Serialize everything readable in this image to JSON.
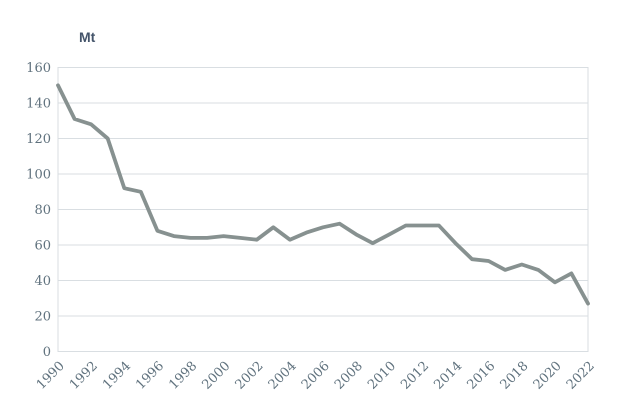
{
  "unit_label": "Mt",
  "chart_data": {
    "type": "line",
    "title": "",
    "xlabel": "",
    "ylabel": "Mt",
    "unit_label": "Mt",
    "legend": "none",
    "grid": "horizontal",
    "ylim": [
      0,
      160
    ],
    "ytick_step": 20,
    "yticks": [
      0,
      20,
      40,
      60,
      80,
      100,
      120,
      140,
      160
    ],
    "xticks": [
      1990,
      1992,
      1994,
      1996,
      1998,
      2000,
      2002,
      2004,
      2006,
      2008,
      2010,
      2012,
      2014,
      2016,
      2018,
      2020,
      2022
    ],
    "x": [
      1990,
      1991,
      1992,
      1993,
      1994,
      1995,
      1996,
      1997,
      1998,
      1999,
      2000,
      2001,
      2002,
      2003,
      2004,
      2005,
      2006,
      2007,
      2008,
      2009,
      2010,
      2011,
      2012,
      2013,
      2014,
      2015,
      2016,
      2017,
      2018,
      2019,
      2020,
      2021,
      2022
    ],
    "series": [
      {
        "name": "Mt",
        "values": [
          150,
          131,
          128,
          120,
          92,
          90,
          68,
          65,
          64,
          64,
          65,
          64,
          63,
          70,
          63,
          67,
          70,
          72,
          66,
          61,
          66,
          71,
          71,
          71,
          61,
          52,
          51,
          46,
          49,
          46,
          39,
          44,
          27
        ]
      }
    ],
    "colors": {
      "line": "#879190",
      "grid": "#d9dee2",
      "tick_text": "#60727e",
      "unit_text": "#44546a",
      "plot_background": "#ffffff"
    }
  }
}
